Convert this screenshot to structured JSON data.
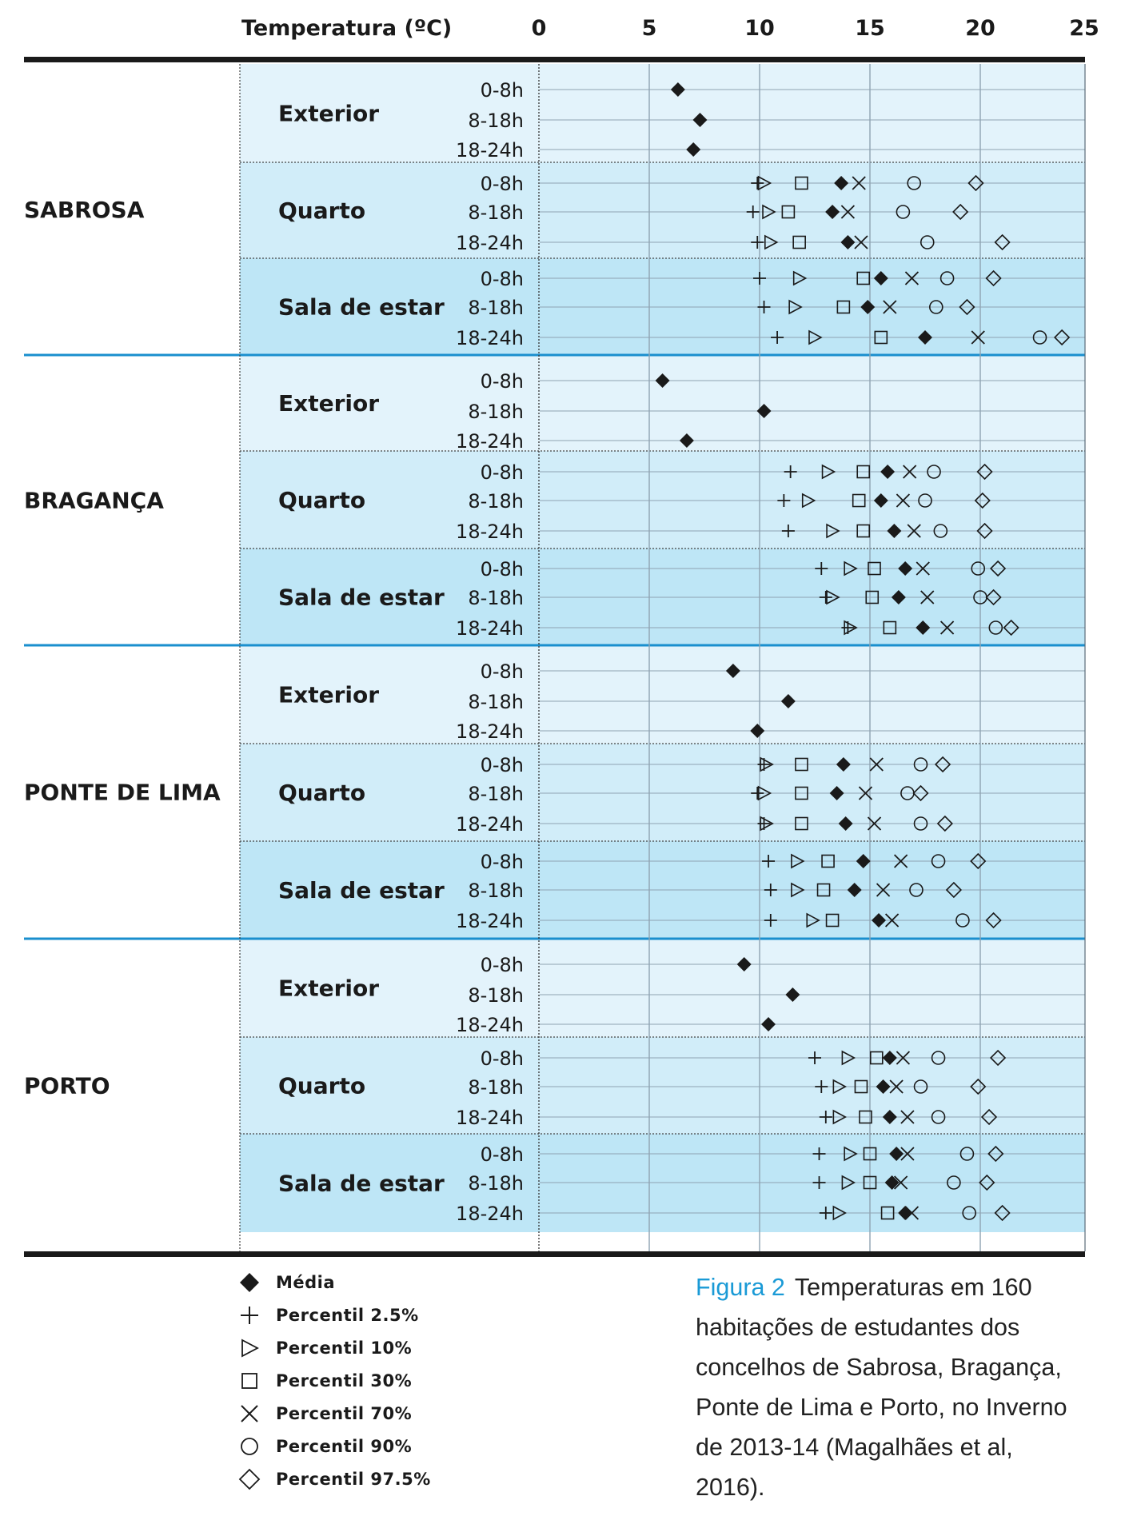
{
  "chart_data": {
    "type": "scatter",
    "xlabel": "Temperatura (ºC)",
    "xlim": [
      0,
      25
    ],
    "xticks": [
      0,
      5,
      10,
      15,
      20,
      25
    ],
    "periods": [
      "0-8h",
      "8-18h",
      "18-24h"
    ],
    "rooms": [
      "Exterior",
      "Quarto",
      "Sala de estar"
    ],
    "markers": [
      "mean",
      "p2_5",
      "p10",
      "p30",
      "p70",
      "p90",
      "p97_5"
    ],
    "legend": [
      {
        "key": "mean",
        "label": "Média",
        "icon": "filled-diamond"
      },
      {
        "key": "p2_5",
        "label": "Percentil 2.5%",
        "icon": "plus"
      },
      {
        "key": "p10",
        "label": "Percentil 10%",
        "icon": "right-triangle"
      },
      {
        "key": "p30",
        "label": "Percentil 30%",
        "icon": "square"
      },
      {
        "key": "p70",
        "label": "Percentil 70%",
        "icon": "cross"
      },
      {
        "key": "p90",
        "label": "Percentil 90%",
        "icon": "circle"
      },
      {
        "key": "p97_5",
        "label": "Percentil 97.5%",
        "icon": "diamond"
      }
    ],
    "regions": [
      {
        "name": "SABROSA",
        "groups": [
          {
            "room": "Exterior",
            "rows": [
              {
                "period": "0-8h",
                "mean": 6.3
              },
              {
                "period": "8-18h",
                "mean": 7.3
              },
              {
                "period": "18-24h",
                "mean": 7.0
              }
            ]
          },
          {
            "room": "Quarto",
            "rows": [
              {
                "period": "0-8h",
                "p2_5": 9.9,
                "p10": 10.2,
                "p30": 11.9,
                "mean": 13.7,
                "p70": 14.5,
                "p90": 17.0,
                "p97_5": 19.8
              },
              {
                "period": "8-18h",
                "p2_5": 9.7,
                "p10": 10.4,
                "p30": 11.3,
                "mean": 13.3,
                "p70": 14.0,
                "p90": 16.5,
                "p97_5": 19.1
              },
              {
                "period": "18-24h",
                "p2_5": 9.9,
                "p10": 10.5,
                "p30": 11.8,
                "mean": 14.0,
                "p70": 14.6,
                "p90": 17.6,
                "p97_5": 21.0
              }
            ]
          },
          {
            "room": "Sala de estar",
            "rows": [
              {
                "period": "0-8h",
                "p2_5": 10.0,
                "p10": 11.8,
                "p30": 14.7,
                "mean": 15.5,
                "p70": 16.9,
                "p90": 18.5,
                "p97_5": 20.6
              },
              {
                "period": "8-18h",
                "p2_5": 10.2,
                "p10": 11.6,
                "p30": 13.8,
                "mean": 14.9,
                "p70": 15.9,
                "p90": 18.0,
                "p97_5": 19.4
              },
              {
                "period": "18-24h",
                "p2_5": 10.8,
                "p10": 12.5,
                "p30": 15.5,
                "mean": 17.5,
                "p70": 19.9,
                "p90": 22.7,
                "p97_5": 23.7
              }
            ]
          }
        ]
      },
      {
        "name": "BRAGANÇA",
        "groups": [
          {
            "room": "Exterior",
            "rows": [
              {
                "period": "0-8h",
                "mean": 5.6
              },
              {
                "period": "8-18h",
                "mean": 10.2
              },
              {
                "period": "18-24h",
                "mean": 6.7
              }
            ]
          },
          {
            "room": "Quarto",
            "rows": [
              {
                "period": "0-8h",
                "p2_5": 11.4,
                "p10": 13.1,
                "p30": 14.7,
                "mean": 15.8,
                "p70": 16.8,
                "p90": 17.9,
                "p97_5": 20.2
              },
              {
                "period": "8-18h",
                "p2_5": 11.1,
                "p10": 12.2,
                "p30": 14.5,
                "mean": 15.5,
                "p70": 16.5,
                "p90": 17.5,
                "p97_5": 20.1
              },
              {
                "period": "18-24h",
                "p2_5": 11.3,
                "p10": 13.3,
                "p30": 14.7,
                "mean": 16.1,
                "p70": 17.0,
                "p90": 18.2,
                "p97_5": 20.2
              }
            ]
          },
          {
            "room": "Sala de estar",
            "rows": [
              {
                "period": "0-8h",
                "p2_5": 12.8,
                "p10": 14.1,
                "p30": 15.2,
                "mean": 16.6,
                "p70": 17.4,
                "p90": 19.9,
                "p97_5": 20.8
              },
              {
                "period": "8-18h",
                "p2_5": 13.0,
                "p10": 13.3,
                "p30": 15.1,
                "mean": 16.3,
                "p70": 17.6,
                "p90": 20.0,
                "p97_5": 20.6
              },
              {
                "period": "18-24h",
                "p2_5": 14.0,
                "p10": 14.1,
                "p30": 15.9,
                "mean": 17.4,
                "p70": 18.5,
                "p90": 20.7,
                "p97_5": 21.4
              }
            ]
          }
        ]
      },
      {
        "name": "PONTE DE LIMA",
        "groups": [
          {
            "room": "Exterior",
            "rows": [
              {
                "period": "0-8h",
                "mean": 8.8
              },
              {
                "period": "8-18h",
                "mean": 11.3
              },
              {
                "period": "18-24h",
                "mean": 9.9
              }
            ]
          },
          {
            "room": "Quarto",
            "rows": [
              {
                "period": "0-8h",
                "p2_5": 10.2,
                "p10": 10.3,
                "p30": 11.9,
                "mean": 13.8,
                "p70": 15.3,
                "p90": 17.3,
                "p97_5": 18.3
              },
              {
                "period": "8-18h",
                "p2_5": 9.9,
                "p10": 10.2,
                "p30": 11.9,
                "mean": 13.5,
                "p70": 14.8,
                "p90": 16.7,
                "p97_5": 17.3
              },
              {
                "period": "18-24h",
                "p2_5": 10.2,
                "p10": 10.3,
                "p30": 11.9,
                "mean": 13.9,
                "p70": 15.2,
                "p90": 17.3,
                "p97_5": 18.4
              }
            ]
          },
          {
            "room": "Sala de estar",
            "rows": [
              {
                "period": "0-8h",
                "p2_5": 10.4,
                "p10": 11.7,
                "p30": 13.1,
                "mean": 14.7,
                "p70": 16.4,
                "p90": 18.1,
                "p97_5": 19.9
              },
              {
                "period": "8-18h",
                "p2_5": 10.5,
                "p10": 11.7,
                "p30": 12.9,
                "mean": 14.3,
                "p70": 15.6,
                "p90": 17.1,
                "p97_5": 18.8
              },
              {
                "period": "18-24h",
                "p2_5": 10.5,
                "p10": 12.4,
                "p30": 13.3,
                "mean": 15.4,
                "p70": 16.0,
                "p90": 19.2,
                "p97_5": 20.6
              }
            ]
          }
        ]
      },
      {
        "name": "PORTO",
        "groups": [
          {
            "room": "Exterior",
            "rows": [
              {
                "period": "0-8h",
                "mean": 9.3
              },
              {
                "period": "8-18h",
                "mean": 11.5
              },
              {
                "period": "18-24h",
                "mean": 10.4
              }
            ]
          },
          {
            "room": "Quarto",
            "rows": [
              {
                "period": "0-8h",
                "p2_5": 12.5,
                "p10": 14.0,
                "p30": 15.3,
                "mean": 15.9,
                "p70": 16.5,
                "p90": 18.1,
                "p97_5": 20.8
              },
              {
                "period": "8-18h",
                "p2_5": 12.8,
                "p10": 13.6,
                "p30": 14.6,
                "mean": 15.6,
                "p70": 16.2,
                "p90": 17.3,
                "p97_5": 19.9
              },
              {
                "period": "18-24h",
                "p2_5": 13.0,
                "p10": 13.6,
                "p30": 14.8,
                "mean": 15.9,
                "p70": 16.7,
                "p90": 18.1,
                "p97_5": 20.4
              }
            ]
          },
          {
            "room": "Sala de estar",
            "rows": [
              {
                "period": "0-8h",
                "p2_5": 12.7,
                "p10": 14.1,
                "p30": 15.0,
                "mean": 16.2,
                "p70": 16.7,
                "p90": 19.4,
                "p97_5": 20.7
              },
              {
                "period": "8-18h",
                "p2_5": 12.7,
                "p10": 14.0,
                "p30": 15.0,
                "mean": 16.0,
                "p70": 16.4,
                "p90": 18.8,
                "p97_5": 20.3
              },
              {
                "period": "18-24h",
                "p2_5": 13.0,
                "p10": 13.6,
                "p30": 15.8,
                "mean": 16.6,
                "p70": 16.9,
                "p90": 19.5,
                "p97_5": 21.0
              }
            ]
          }
        ]
      }
    ]
  },
  "caption": {
    "figure_label": "Figura 2",
    "text": "Temperaturas em 160 habitações de estudantes dos concelhos de Sabrosa, Bragança, Ponte de Lima e Porto, no Inverno de 2013-14 (Magalhães et al, 2016)."
  },
  "colors": {
    "ink": "#1a1a1a",
    "band_exterior": "#e3f3fb",
    "band_quarto": "#d1edf9",
    "band_sala": "#bee6f6",
    "region_divider": "#1a8fce",
    "grid": "#8fa3b2",
    "caption_accent": "#1a9ad6"
  }
}
